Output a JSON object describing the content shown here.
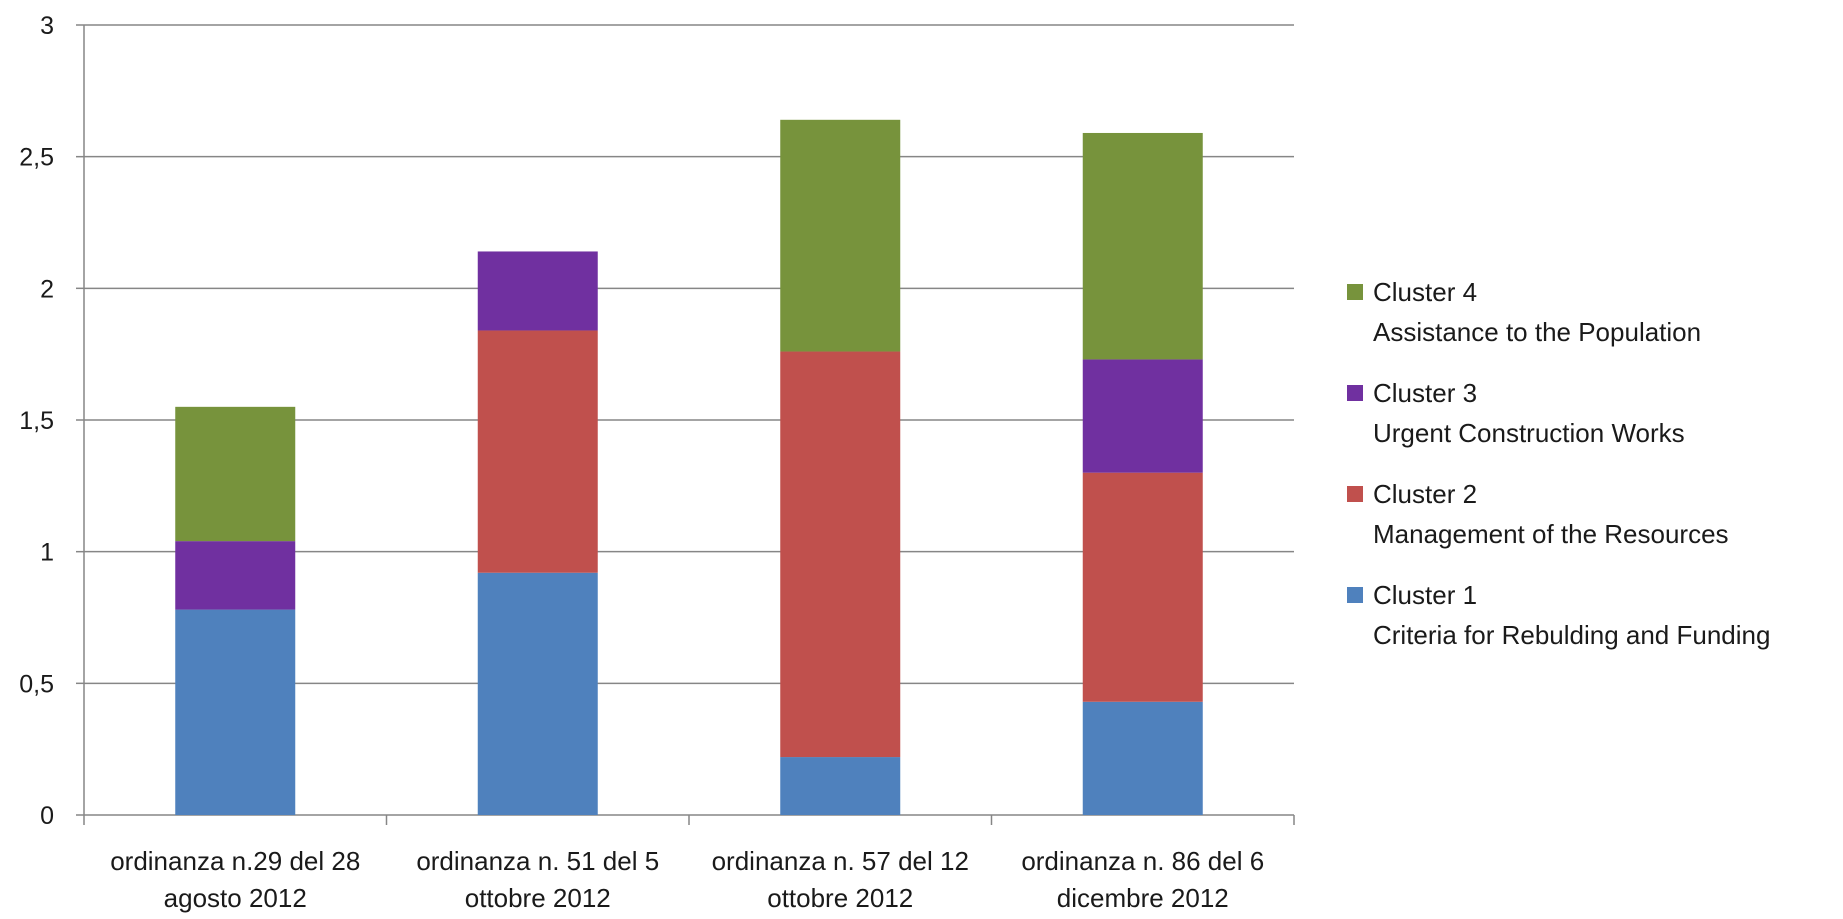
{
  "chart_data": {
    "type": "bar",
    "stacked": true,
    "title": "",
    "xlabel": "",
    "ylabel": "",
    "ylim": [
      0,
      3
    ],
    "yticks": [
      "0",
      "0,5",
      "1",
      "1,5",
      "2",
      "2,5",
      "3"
    ],
    "ytick_values": [
      0,
      0.5,
      1,
      1.5,
      2,
      2.5,
      3
    ],
    "grid": true,
    "legend_position": "right",
    "categories": [
      [
        "ordinanza n.29 del 28",
        "agosto 2012"
      ],
      [
        "ordinanza n. 51 del 5",
        "ottobre 2012"
      ],
      [
        "ordinanza n. 57 del 12",
        "ottobre 2012"
      ],
      [
        "ordinanza n. 86 del 6",
        "dicembre 2012"
      ]
    ],
    "series": [
      {
        "name": "Cluster 1",
        "description": "Criteria for Rebulding and Funding",
        "color": "#4f81bd",
        "values": [
          0.78,
          0.92,
          0.22,
          0.43
        ]
      },
      {
        "name": "Cluster 2",
        "description": "Management of the Resources",
        "color": "#c0504d",
        "values": [
          0.0,
          0.92,
          1.54,
          0.87
        ]
      },
      {
        "name": "Cluster 3",
        "description": "Urgent Construction Works",
        "color": "#7030a0",
        "values": [
          0.26,
          0.3,
          0.0,
          0.43
        ]
      },
      {
        "name": "Cluster 4",
        "description": "Assistance to the Population",
        "color": "#77933c",
        "values": [
          0.51,
          0.0,
          0.88,
          0.86
        ]
      }
    ]
  }
}
